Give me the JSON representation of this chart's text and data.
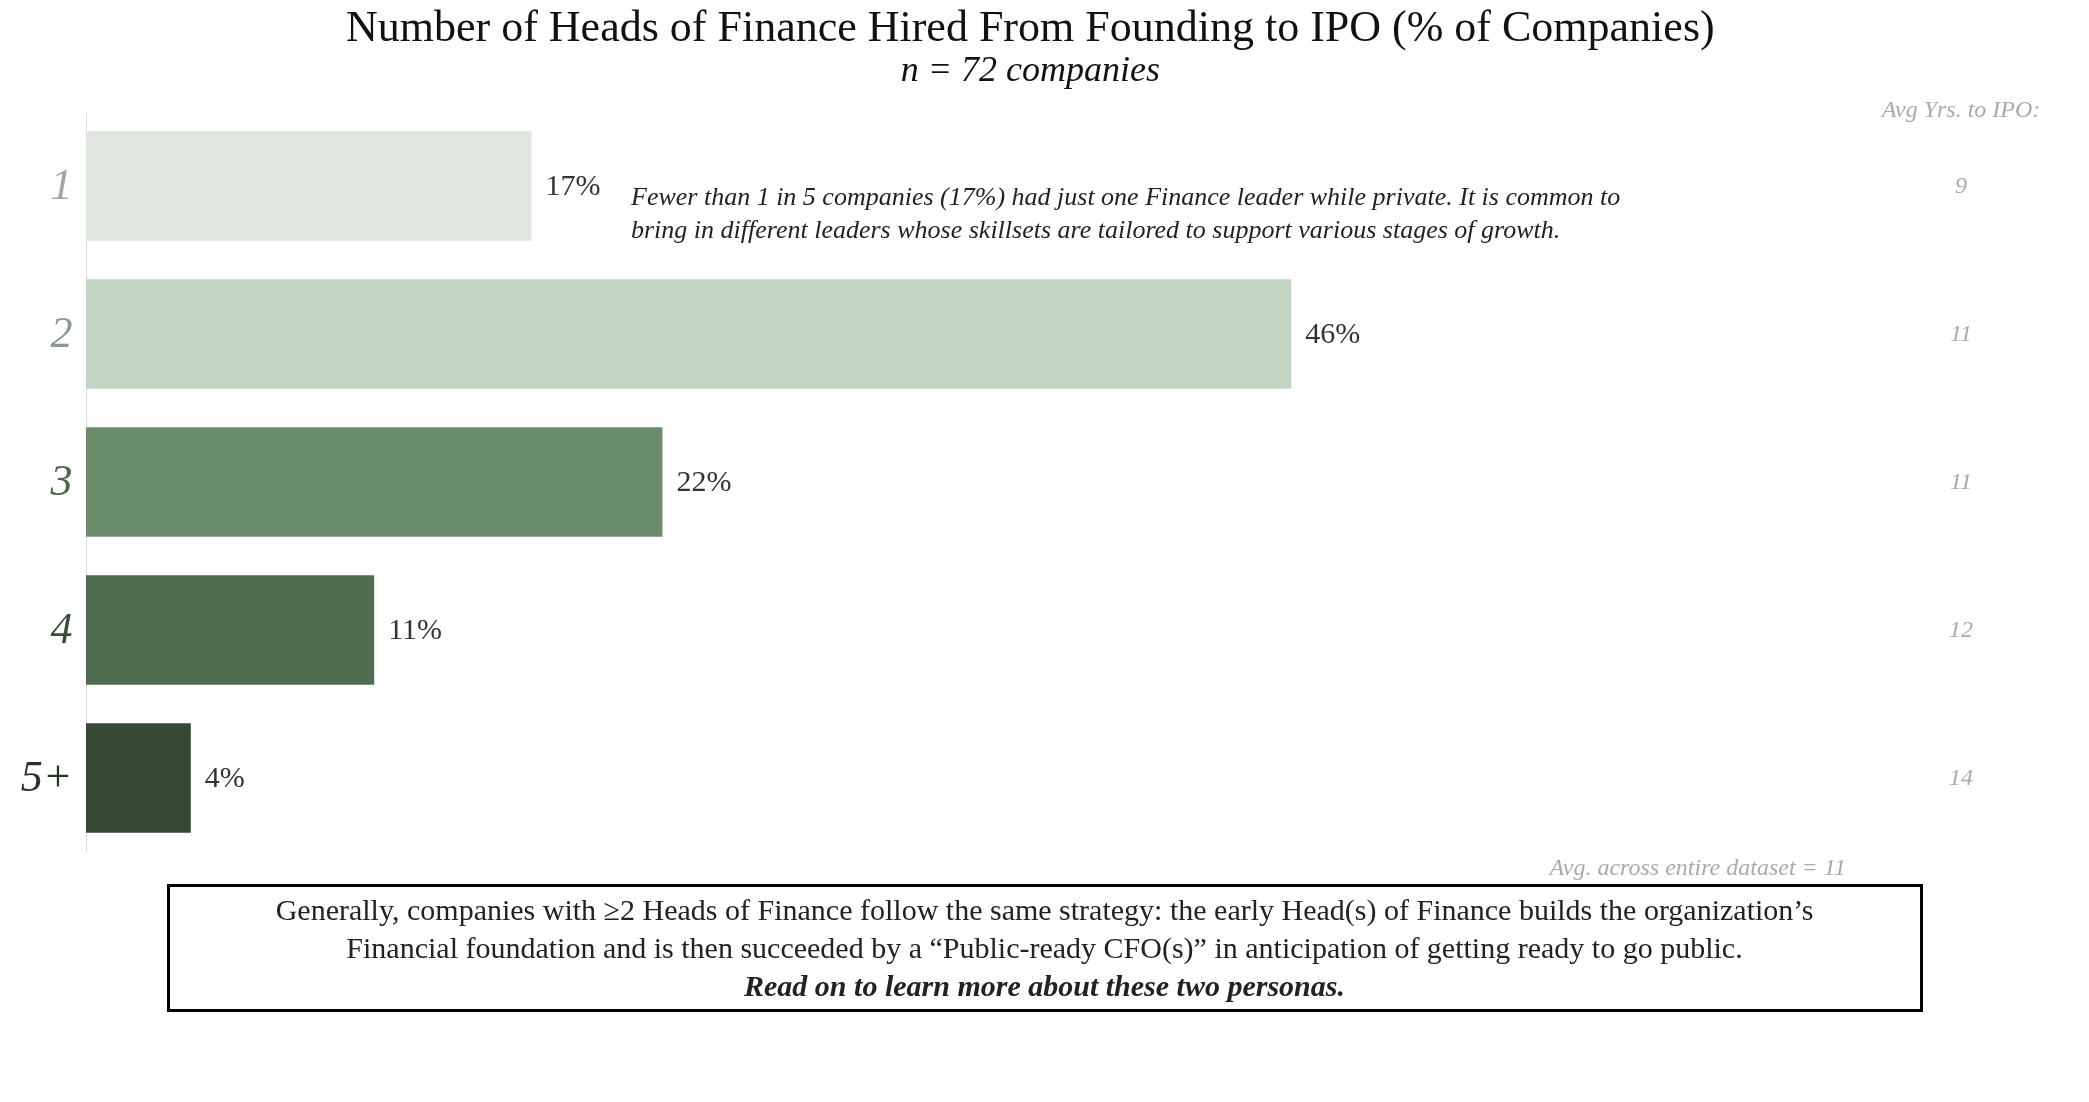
{
  "chart_data": {
    "type": "bar",
    "orientation": "horizontal",
    "title": "Number of Heads of Finance Hired From Founding to IPO (% of Companies)",
    "subtitle": "n = 72 companies",
    "categories": [
      "1",
      "2",
      "3",
      "4",
      "5+"
    ],
    "values": [
      17,
      46,
      22,
      11,
      4
    ],
    "value_labels": [
      "17%",
      "46%",
      "22%",
      "11%",
      "4%"
    ],
    "colors": [
      "#dfe6df",
      "#c3d5c5",
      "#6b8c6b",
      "#4f6b50",
      "#354834"
    ],
    "annotations": [
      "Fewer than 1 in 5 companies (17%) had just one Finance leader while private. It is common to bring in different leaders whose skillsets are tailored to support various stages of growth.",
      "Avg Yrs. to IPO:",
      "9",
      "11",
      "11",
      "12",
      "14",
      "Avg. across entire dataset = 11",
      "Generally, companies with ≥2 Heads of Finance follow the same strategy: the early Head(s) of Finance builds the organization’s",
      "Financial foundation and is then succeeded by a “Public-ready CFO(s)” in anticipation of getting ready to go public.",
      "Read on to learn more about these two personas."
    ]
  }
}
